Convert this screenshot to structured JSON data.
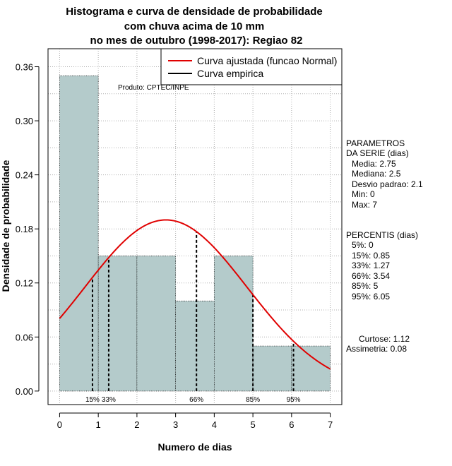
{
  "chart_data": {
    "type": "bar",
    "title_lines": [
      "Histograma e curva de densidade de probabilidade",
      "com chuva acima de 10 mm",
      "no mes de outubro (1998-2017): Regiao 82"
    ],
    "xlabel": "Numero de dias",
    "ylabel": "Densidade de probabilidade",
    "xlim": [
      -0.3,
      7.3
    ],
    "ylim": [
      -0.015,
      0.38
    ],
    "x_ticks": [
      0,
      1,
      2,
      3,
      4,
      5,
      6,
      7
    ],
    "y_ticks": [
      0.0,
      0.06,
      0.12,
      0.18,
      0.24,
      0.3,
      0.36
    ],
    "y_tick_labels": [
      "0.00",
      "0.06",
      "0.12",
      "0.18",
      "0.24",
      "0.30",
      "0.36"
    ],
    "grid": true,
    "bins": [
      {
        "x0": 0,
        "x1": 1,
        "density": 0.35
      },
      {
        "x0": 1,
        "x1": 2,
        "density": 0.15
      },
      {
        "x0": 2,
        "x1": 3,
        "density": 0.15
      },
      {
        "x0": 3,
        "x1": 4,
        "density": 0.1
      },
      {
        "x0": 4,
        "x1": 5,
        "density": 0.15
      },
      {
        "x0": 5,
        "x1": 6,
        "density": 0.05
      },
      {
        "x0": 6,
        "x1": 7,
        "density": 0.05
      }
    ],
    "normal_fit": {
      "mean": 2.75,
      "sd": 2.1,
      "x_range": [
        0,
        7
      ]
    },
    "percentile_lines": [
      {
        "label": "15%",
        "x": 0.85
      },
      {
        "label": "33%",
        "x": 1.27
      },
      {
        "label": "66%",
        "x": 3.54
      },
      {
        "label": "85%",
        "x": 5
      },
      {
        "label": "95%",
        "x": 6.05
      }
    ],
    "legend": {
      "placement": "top-right",
      "entries": [
        {
          "label": "Curva ajustada (funcao Normal)",
          "color": "#e00000"
        },
        {
          "label": "Curva empirica",
          "color": "#000000"
        }
      ]
    },
    "credit": "Produto: CPTEC/INPE",
    "side_stats": {
      "params_heading": [
        "PARAMETROS",
        "DA SERIE (dias)"
      ],
      "params": [
        "Media: 2.75",
        "Mediana: 2.5",
        "Desvio padrao: 2.1",
        "Min: 0",
        "Max: 7"
      ],
      "percentis_heading": "PERCENTIS (dias)",
      "percentis": [
        "5%: 0",
        "15%: 0.85",
        "33%: 1.27",
        "66%: 3.54",
        "85%: 5",
        "95%: 6.05"
      ],
      "shape": [
        "Curtose: 1.12",
        "Assimetria: 0.08"
      ]
    },
    "colors": {
      "bar_fill": "#b4cbcb",
      "fit_curve": "#e00000",
      "grid": "#b0b0b0"
    }
  }
}
